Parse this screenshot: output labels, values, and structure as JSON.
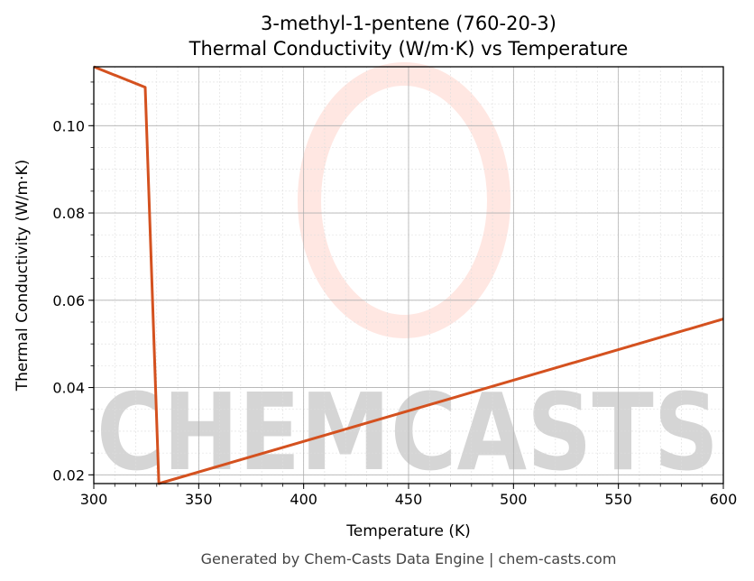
{
  "chart_data": {
    "type": "line",
    "title": "3-methyl-1-pentene (760-20-3)",
    "subtitle": "Thermal Conductivity (W/m·K) vs Temperature",
    "xlabel": "Temperature (K)",
    "ylabel": "Thermal Conductivity (W/m·K)",
    "xlim": [
      300,
      600
    ],
    "ylim": [
      0.018,
      0.1135
    ],
    "x_ticks": [
      300,
      350,
      400,
      450,
      500,
      550,
      600
    ],
    "y_ticks": [
      0.02,
      0.04,
      0.06,
      0.08,
      0.1
    ],
    "y_tick_labels": [
      "0.02",
      "0.04",
      "0.06",
      "0.08",
      "0.10"
    ],
    "grid": true,
    "series": [
      {
        "color": "#d4511f",
        "x": [
          300,
          324.5,
          331,
          600
        ],
        "y": [
          0.1135,
          0.1088,
          0.018,
          0.0557
        ]
      }
    ]
  },
  "watermark": "CHEMCASTS",
  "footer": "Generated by Chem-Casts Data Engine | chem-casts.com"
}
